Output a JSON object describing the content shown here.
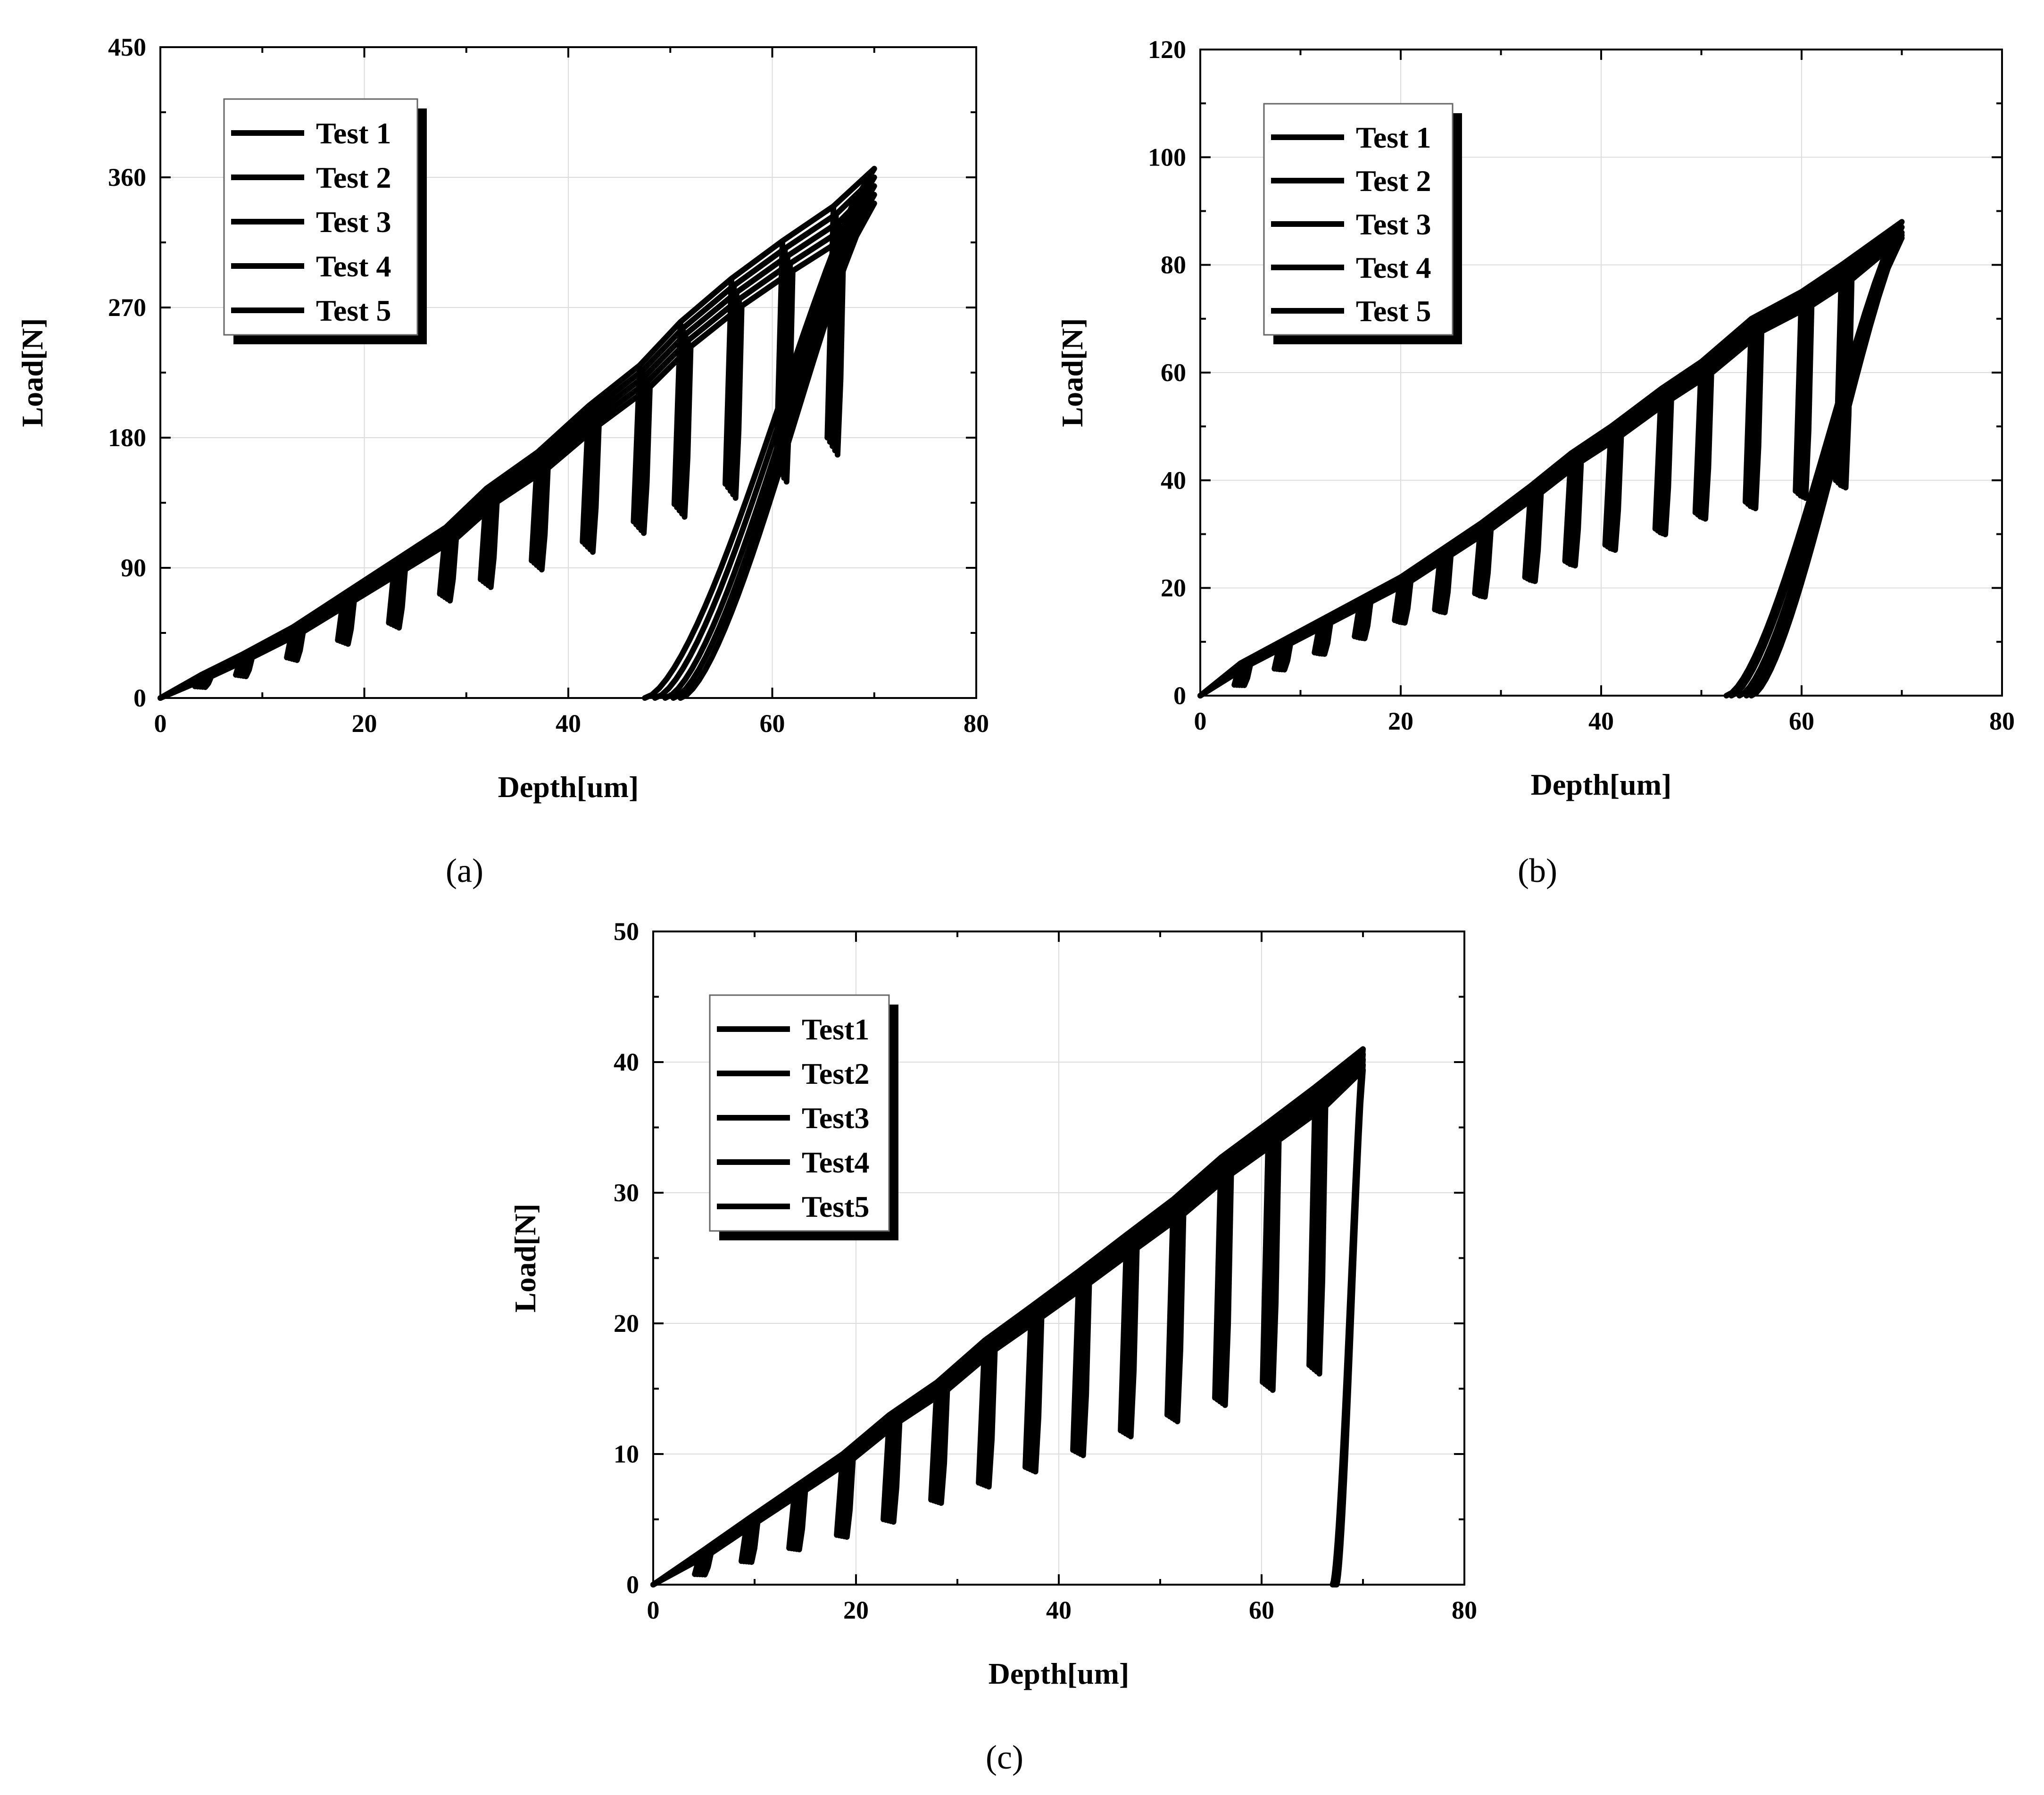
{
  "chart_data": [
    {
      "id": "a",
      "type": "line",
      "caption": "(a)",
      "xlabel": "Depth[um]",
      "ylabel": "Load[N]",
      "xlim": [
        0,
        80
      ],
      "ylim": [
        0,
        450
      ],
      "xticks": [
        0,
        20,
        40,
        60,
        80
      ],
      "yticks": [
        0,
        90,
        180,
        270,
        360,
        450
      ],
      "grid": true,
      "legend_position": "top-left",
      "legend": [
        "Test 1",
        "Test 2",
        "Test 3",
        "Test 4",
        "Test 5"
      ],
      "series": [
        {
          "name": "Test 1",
          "peak_depth": 70,
          "peak_load": 366,
          "unload_end_depth": 47.5
        },
        {
          "name": "Test 2",
          "peak_depth": 70,
          "peak_load": 360,
          "unload_end_depth": 48.5
        },
        {
          "name": "Test 3",
          "peak_depth": 70,
          "peak_load": 354,
          "unload_end_depth": 49.5
        },
        {
          "name": "Test 4",
          "peak_depth": 70,
          "peak_load": 348,
          "unload_end_depth": 50.3
        },
        {
          "name": "Test 5",
          "peak_depth": 70,
          "peak_load": 342,
          "unload_end_depth": 51
        }
      ],
      "cycles": [
        {
          "depth": 4,
          "load": 16,
          "drop": 8
        },
        {
          "depth": 8,
          "load": 30,
          "drop": 16
        },
        {
          "depth": 13,
          "load": 49,
          "drop": 28
        },
        {
          "depth": 18,
          "load": 72,
          "drop": 40
        },
        {
          "depth": 23,
          "load": 95,
          "drop": 52
        },
        {
          "depth": 28,
          "load": 118,
          "drop": 72
        },
        {
          "depth": 32,
          "load": 145,
          "drop": 82
        },
        {
          "depth": 37,
          "load": 170,
          "drop": 95
        },
        {
          "depth": 42,
          "load": 202,
          "drop": 108
        },
        {
          "depth": 47,
          "load": 230,
          "drop": 122
        },
        {
          "depth": 51,
          "load": 260,
          "drop": 134
        },
        {
          "depth": 56,
          "load": 290,
          "drop": 148
        },
        {
          "depth": 61,
          "load": 316,
          "drop": 160
        },
        {
          "depth": 66,
          "load": 340,
          "drop": 180
        }
      ]
    },
    {
      "id": "b",
      "type": "line",
      "caption": "(b)",
      "xlabel": "Depth[um]",
      "ylabel": "Load[N]",
      "xlim": [
        0,
        80
      ],
      "ylim": [
        0,
        120
      ],
      "xticks": [
        0,
        20,
        40,
        60,
        80
      ],
      "yticks": [
        0,
        20,
        40,
        60,
        80,
        100,
        120
      ],
      "grid": true,
      "legend_position": "top-left",
      "legend": [
        "Test 1",
        "Test 2",
        "Test 3",
        "Test 4",
        "Test 5"
      ],
      "series": [
        {
          "name": "Test 1",
          "peak_depth": 70,
          "peak_load": 88,
          "unload_end_depth": 52.5
        },
        {
          "name": "Test 2",
          "peak_depth": 70,
          "peak_load": 87,
          "unload_end_depth": 53
        },
        {
          "name": "Test 3",
          "peak_depth": 70,
          "peak_load": 86,
          "unload_end_depth": 53.8
        },
        {
          "name": "Test 4",
          "peak_depth": 70,
          "peak_load": 85.5,
          "unload_end_depth": 54.5
        },
        {
          "name": "Test 5",
          "peak_depth": 70,
          "peak_load": 85,
          "unload_end_depth": 55
        }
      ],
      "cycles": [
        {
          "depth": 4,
          "load": 6,
          "drop": 2
        },
        {
          "depth": 8,
          "load": 10,
          "drop": 5
        },
        {
          "depth": 12,
          "load": 14,
          "drop": 8
        },
        {
          "depth": 16,
          "load": 18,
          "drop": 11
        },
        {
          "depth": 20,
          "load": 22,
          "drop": 14
        },
        {
          "depth": 24,
          "load": 27,
          "drop": 16
        },
        {
          "depth": 28,
          "load": 32,
          "drop": 19
        },
        {
          "depth": 33,
          "load": 39,
          "drop": 22
        },
        {
          "depth": 37,
          "load": 45,
          "drop": 25
        },
        {
          "depth": 41,
          "load": 50,
          "drop": 28
        },
        {
          "depth": 46,
          "load": 57,
          "drop": 31
        },
        {
          "depth": 50,
          "load": 62,
          "drop": 34
        },
        {
          "depth": 55,
          "load": 70,
          "drop": 36
        },
        {
          "depth": 60,
          "load": 75,
          "drop": 38
        },
        {
          "depth": 64,
          "load": 80,
          "drop": 40
        }
      ]
    },
    {
      "id": "c",
      "type": "line",
      "caption": "(c)",
      "xlabel": "Depth[um]",
      "ylabel": "Load[N]",
      "xlim": [
        0,
        80
      ],
      "ylim": [
        0,
        50
      ],
      "xticks": [
        0,
        20,
        40,
        60,
        80
      ],
      "yticks": [
        0,
        10,
        20,
        30,
        40,
        50
      ],
      "grid": true,
      "legend_position": "top-left",
      "legend": [
        "Test1",
        "Test2",
        "Test3",
        "Test4",
        "Test5"
      ],
      "series": [
        {
          "name": "Test1",
          "peak_depth": 70,
          "peak_load": 41,
          "unload_end_depth": 67
        },
        {
          "name": "Test2",
          "peak_depth": 70,
          "peak_load": 40.6,
          "unload_end_depth": 67.1
        },
        {
          "name": "Test3",
          "peak_depth": 70,
          "peak_load": 40.2,
          "unload_end_depth": 67.2
        },
        {
          "name": "Test4",
          "peak_depth": 70,
          "peak_load": 39.8,
          "unload_end_depth": 67.3
        },
        {
          "name": "Test5",
          "peak_depth": 70,
          "peak_load": 39.4,
          "unload_end_depth": 67.4
        }
      ],
      "cycles": [
        {
          "depth": 4.7,
          "load": 2.5,
          "drop": 0.8
        },
        {
          "depth": 9.3,
          "load": 5,
          "drop": 1.8
        },
        {
          "depth": 14,
          "load": 7.5,
          "drop": 2.8
        },
        {
          "depth": 18.7,
          "load": 10,
          "drop": 3.8
        },
        {
          "depth": 23.3,
          "load": 13,
          "drop": 5
        },
        {
          "depth": 28,
          "load": 15.5,
          "drop": 6.5
        },
        {
          "depth": 32.7,
          "load": 18.7,
          "drop": 7.8
        },
        {
          "depth": 37.3,
          "load": 21.3,
          "drop": 9
        },
        {
          "depth": 42,
          "load": 24,
          "drop": 10.3
        },
        {
          "depth": 46.7,
          "load": 26.8,
          "drop": 11.8
        },
        {
          "depth": 51.3,
          "load": 29.5,
          "drop": 13
        },
        {
          "depth": 56,
          "load": 32.7,
          "drop": 14.3
        },
        {
          "depth": 60.7,
          "load": 35.4,
          "drop": 15.5
        },
        {
          "depth": 65.3,
          "load": 38.1,
          "drop": 16.8
        }
      ]
    }
  ]
}
